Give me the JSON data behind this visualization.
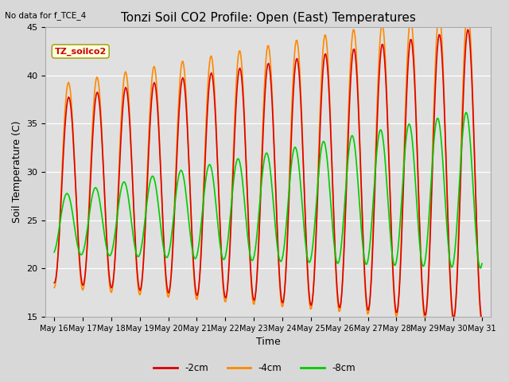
{
  "title": "Tonzi Soil CO2 Profile: Open (East) Temperatures",
  "ylabel": "Soil Temperature (C)",
  "xlabel": "Time",
  "note": "No data for f_TCE_4",
  "legend_label": "TZ_soilco2",
  "ylim": [
    15,
    45
  ],
  "series_labels": [
    "-2cm",
    "-4cm",
    "-8cm"
  ],
  "series_colors": [
    "#dd0000",
    "#ff8800",
    "#00cc00"
  ],
  "series_linewidths": [
    1.2,
    1.2,
    1.2
  ],
  "bg_color": "#d8d8d8",
  "plot_bg_color": "#e0e0e0",
  "tick_dates": [
    "May 16",
    "May 17",
    "May 18",
    "May 19",
    "May 20",
    "May 21",
    "May 22",
    "May 23",
    "May 24",
    "May 25",
    "May 26",
    "May 27",
    "May 28",
    "May 29",
    "May 30",
    "May 31"
  ],
  "title_fontsize": 11,
  "axis_fontsize": 9,
  "tick_fontsize": 8
}
